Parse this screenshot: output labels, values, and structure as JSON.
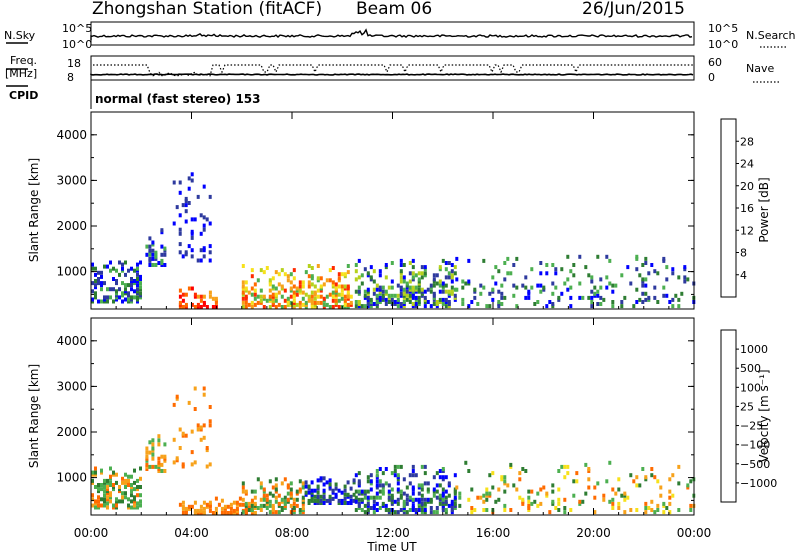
{
  "header": {
    "station": "Zhongshan Station (fitACF)",
    "beam": "Beam 06",
    "date": "26/Jun/2015"
  },
  "panels": {
    "nsky_label": "N.Sky",
    "nsky_ticks": [
      "10^5",
      "10^0"
    ],
    "nsearch_label": "N.Search",
    "nsearch_ticks": [
      "10^5",
      "10^0"
    ],
    "freq_label_1": "Freq.",
    "freq_label_2": "[MHz]",
    "freq_ticks": [
      "18",
      "8"
    ],
    "cpid_label": "CPID",
    "nave_label": "Nave",
    "nave_ticks": [
      "60",
      "0"
    ],
    "cpid_text": "normal (fast stereo) 153"
  },
  "chart_data": [
    {
      "type": "heatmap",
      "title": "",
      "ylabel": "Slant Range [km]",
      "xlabel": "",
      "ylim": [
        180,
        4500
      ],
      "y_ticks": [
        "1000",
        "2000",
        "3000",
        "4000"
      ],
      "colorbar": {
        "label": "Power [dB]",
        "ticks": [
          "28",
          "24",
          "20",
          "16",
          "12",
          "8",
          "4"
        ],
        "colors": [
          "#0000ff",
          "#2e3a9e",
          "#2e7d32",
          "#4caf50",
          "#b6d11c",
          "#f7e11b",
          "#f7a21b",
          "#ff6b00",
          "#ff2a00",
          "#ff0000"
        ]
      },
      "regions": [
        {
          "from": "00:00",
          "to": "02:00",
          "range_km": [
            300,
            1200
          ],
          "dominant": "dark green / blue"
        },
        {
          "from": "02:10",
          "to": "03:00",
          "range_km": [
            1100,
            1900
          ],
          "dominant": "blue / green"
        },
        {
          "from": "03:15",
          "to": "04:45",
          "range_km": [
            1200,
            3100
          ],
          "dominant": "blue (sparse)"
        },
        {
          "from": "03:30",
          "to": "05:00",
          "range_km": [
            180,
            600
          ],
          "dominant": "red / orange"
        },
        {
          "from": "06:00",
          "to": "10:20",
          "range_km": [
            180,
            1100
          ],
          "dominant": "orange / red / green"
        },
        {
          "from": "10:30",
          "to": "14:30",
          "range_km": [
            200,
            1200
          ],
          "dominant": "green / blue"
        },
        {
          "from": "14:30",
          "to": "24:00",
          "range_km": [
            200,
            1300
          ],
          "dominant": "green / blue (sparse)"
        }
      ]
    },
    {
      "type": "heatmap",
      "title": "",
      "ylabel": "Slant Range [km]",
      "xlabel": "Time UT",
      "ylim": [
        180,
        4500
      ],
      "x_ticks": [
        "00:00",
        "04:00",
        "08:00",
        "12:00",
        "16:00",
        "20:00",
        "00:00"
      ],
      "y_ticks": [
        "1000",
        "2000",
        "3000",
        "4000"
      ],
      "colorbar": {
        "label": "Velocity [m s⁻¹]",
        "ticks": [
          "1000",
          "500",
          "100",
          "25",
          "−25",
          "−100",
          "−500",
          "−1000"
        ],
        "colors": [
          "#0000ff",
          "#2e3a9e",
          "#2e7d32",
          "#4caf50",
          "#7ee04a",
          "#c0c0c0",
          "#f7e11b",
          "#f7a21b",
          "#ff6b00",
          "#ff2a00",
          "#ff0000"
        ]
      },
      "regions": [
        {
          "from": "00:00",
          "to": "02:00",
          "range_km": [
            300,
            1200
          ],
          "dominant": "green / orange"
        },
        {
          "from": "02:10",
          "to": "03:00",
          "range_km": [
            1100,
            1900
          ],
          "dominant": "orange / green"
        },
        {
          "from": "03:15",
          "to": "04:45",
          "range_km": [
            1200,
            3100
          ],
          "dominant": "orange (sparse)"
        },
        {
          "from": "03:30",
          "to": "06:30",
          "range_km": [
            180,
            500
          ],
          "dominant": "orange"
        },
        {
          "from": "06:00",
          "to": "08:30",
          "range_km": [
            200,
            1000
          ],
          "dominant": "orange / green"
        },
        {
          "from": "08:30",
          "to": "10:30",
          "range_km": [
            400,
            1000
          ],
          "dominant": "blue"
        },
        {
          "from": "10:30",
          "to": "14:30",
          "range_km": [
            200,
            1200
          ],
          "dominant": "green / blue"
        },
        {
          "from": "14:30",
          "to": "24:00",
          "range_km": [
            200,
            1300
          ],
          "dominant": "orange / yellow / green (sparse)"
        }
      ]
    }
  ]
}
